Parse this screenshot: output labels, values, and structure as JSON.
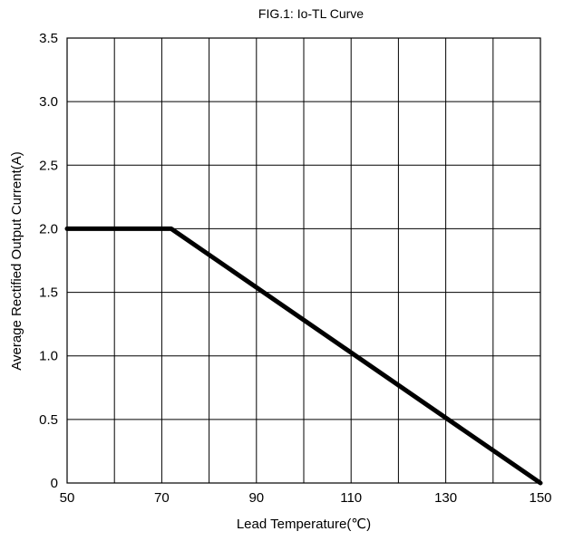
{
  "chart_data": {
    "type": "line",
    "title": "FIG.1: Io-TL Curve",
    "xlabel": "Lead Temperature(℃)",
    "ylabel": "Average Rectified Output Current(A)",
    "xlim": [
      50,
      150
    ],
    "ylim": [
      0,
      3.5
    ],
    "x_ticks": [
      50,
      70,
      90,
      110,
      130,
      150
    ],
    "x_tick_labels": [
      "50",
      "70",
      "90",
      "110",
      "130",
      "150"
    ],
    "x_grid": [
      50,
      60,
      70,
      80,
      90,
      100,
      110,
      120,
      130,
      140,
      150
    ],
    "y_ticks": [
      0,
      0.5,
      1.0,
      1.5,
      2.0,
      2.5,
      3.0,
      3.5
    ],
    "y_tick_labels": [
      "0",
      "0.5",
      "1.0",
      "1.5",
      "2.0",
      "2.5",
      "3.0",
      "3.5"
    ],
    "grid": true,
    "series": [
      {
        "x": [
          50,
          72,
          150
        ],
        "y": [
          2.0,
          2.0,
          0
        ]
      }
    ],
    "colors": {
      "line": "#000000",
      "grid": "#000000",
      "background": "#ffffff"
    }
  }
}
